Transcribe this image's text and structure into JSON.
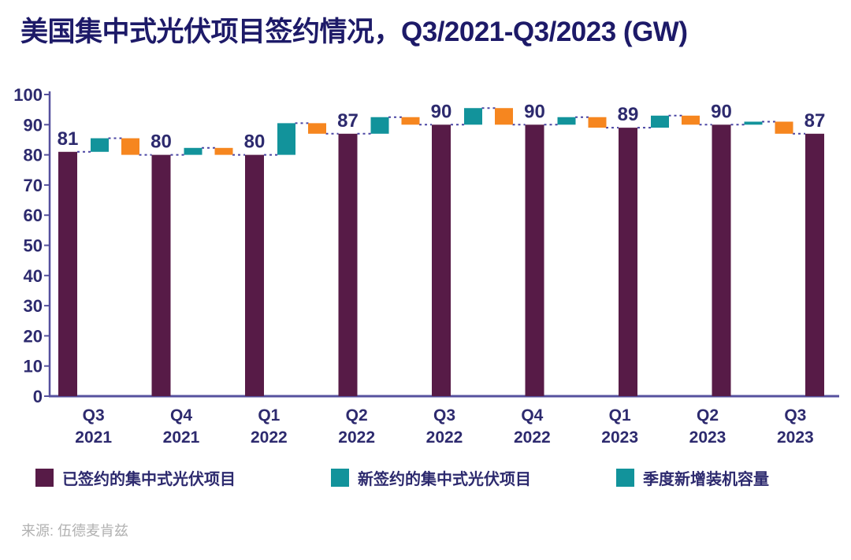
{
  "title": "美国集中式光伏项目签约情况，Q3/2021-Q3/2023 (GW)",
  "source": "来源: 伍德麦肯兹",
  "colors": {
    "contracted": "#571b47",
    "newly_contracted": "#12939b",
    "quarterly_installed": "#f6861f",
    "axis": "#56519e",
    "connector": "#4a45a3",
    "tick_text": "#2d2a6e",
    "value_label_text": "#2d2a6e",
    "title_text": "#1d1a68",
    "source_text": "#b1b1b1"
  },
  "legend": {
    "items": [
      {
        "label": "已签约的集中式光伏项目",
        "swatch_color": "#571b47"
      },
      {
        "label": "新签约的集中式光伏项目",
        "swatch_color": "#12939b"
      },
      {
        "label": "季度新增装机容量",
        "swatch_color": "#12939b"
      }
    ]
  },
  "chart_data": {
    "type": "bar",
    "subtype": "waterfall",
    "title": "美国集中式光伏项目签约情况，Q3/2021-Q3/2023 (GW)",
    "xlabel": "",
    "ylabel": "",
    "ylim": [
      0,
      100
    ],
    "yticks": [
      0,
      10,
      20,
      30,
      40,
      50,
      60,
      70,
      80,
      90,
      100
    ],
    "grid": false,
    "legend_position": "bottom",
    "categories": [
      {
        "line1": "Q3",
        "line2": "2021"
      },
      {
        "line1": "Q4",
        "line2": "2021"
      },
      {
        "line1": "Q1",
        "line2": "2022"
      },
      {
        "line1": "Q2",
        "line2": "2022"
      },
      {
        "line1": "Q3",
        "line2": "2022"
      },
      {
        "line1": "Q4",
        "line2": "2022"
      },
      {
        "line1": "Q1",
        "line2": "2023"
      },
      {
        "line1": "Q2",
        "line2": "2023"
      },
      {
        "line1": "Q3",
        "line2": "2023"
      }
    ],
    "series": [
      {
        "name": "已签约的集中式光伏项目",
        "role": "base",
        "color_key": "contracted",
        "values": [
          81,
          80,
          80,
          87,
          90,
          90,
          89,
          90,
          87
        ],
        "data_labels": [
          "81",
          "80",
          "80",
          "87",
          "90",
          "90",
          "89",
          "90",
          "87"
        ]
      },
      {
        "name": "新签约的集中式光伏项目",
        "role": "increase",
        "color_key": "newly_contracted",
        "segments": [
          [
            81,
            85.5
          ],
          [
            80,
            82.3
          ],
          [
            80,
            90.5
          ],
          [
            87,
            92.5
          ],
          [
            90,
            95.5
          ],
          [
            90,
            92.5
          ],
          [
            89,
            93
          ],
          [
            90,
            91
          ]
        ]
      },
      {
        "name": "季度新增装机容量",
        "role": "decrease",
        "color_key": "quarterly_installed",
        "segments": [
          [
            85.5,
            80
          ],
          [
            82.3,
            80
          ],
          [
            90.5,
            87
          ],
          [
            92.5,
            90
          ],
          [
            95.5,
            90
          ],
          [
            92.5,
            89
          ],
          [
            93,
            90
          ],
          [
            91,
            87
          ]
        ]
      }
    ]
  }
}
